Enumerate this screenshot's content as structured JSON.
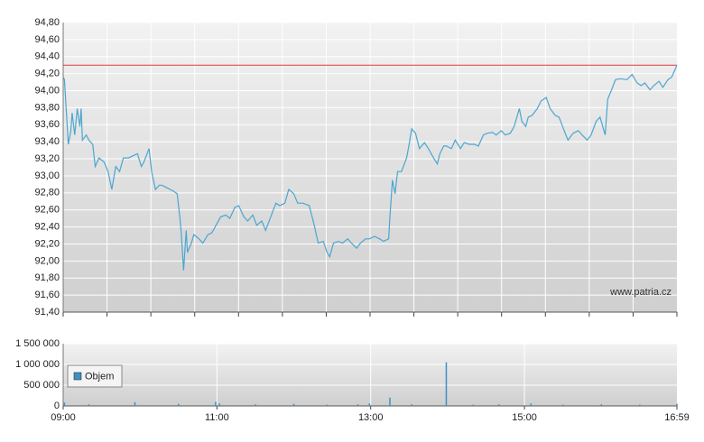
{
  "chart_data": [
    {
      "type": "line",
      "color": "#4ba6d0",
      "reference_line": 94.3,
      "reference_color": "#e03c3c",
      "watermark": "www.patria.cz",
      "grid": true,
      "xlim": [
        540,
        1019
      ],
      "ylim": [
        91.4,
        94.8
      ],
      "yticks": [
        {
          "value": 91.4,
          "label": "91,40"
        },
        {
          "value": 91.6,
          "label": "91,60"
        },
        {
          "value": 91.8,
          "label": "91,80"
        },
        {
          "value": 92.0,
          "label": "92,00"
        },
        {
          "value": 92.2,
          "label": "92,20"
        },
        {
          "value": 92.4,
          "label": "92,40"
        },
        {
          "value": 92.6,
          "label": "92,60"
        },
        {
          "value": 92.8,
          "label": "92,80"
        },
        {
          "value": 93.0,
          "label": "93,00"
        },
        {
          "value": 93.2,
          "label": "93,20"
        },
        {
          "value": 93.4,
          "label": "93,40"
        },
        {
          "value": 93.6,
          "label": "93,60"
        },
        {
          "value": 93.8,
          "label": "93,80"
        },
        {
          "value": 94.0,
          "label": "94,00"
        },
        {
          "value": 94.2,
          "label": "94,20"
        },
        {
          "value": 94.4,
          "label": "94,40"
        },
        {
          "value": 94.6,
          "label": "94,60"
        },
        {
          "value": 94.8,
          "label": "94,80"
        }
      ],
      "x": [
        540,
        541,
        544,
        546,
        547,
        549,
        551,
        553,
        554,
        555,
        558,
        560,
        563,
        565,
        568,
        572,
        575,
        578,
        581,
        584,
        587,
        591,
        595,
        598,
        601,
        603,
        607,
        609,
        612,
        615,
        617,
        621,
        626,
        629,
        631,
        632,
        634,
        636,
        637,
        640,
        642,
        646,
        649,
        653,
        656,
        660,
        663,
        667,
        670,
        674,
        677,
        681,
        684,
        688,
        691,
        695,
        698,
        702,
        706,
        709,
        713,
        716,
        720,
        723,
        727,
        732,
        736,
        739,
        743,
        746,
        748,
        751,
        755,
        758,
        762,
        765,
        769,
        772,
        776,
        779,
        783,
        787,
        790,
        794,
        795,
        797,
        799,
        801,
        804,
        808,
        810,
        812,
        815,
        818,
        822,
        825,
        829,
        832,
        834,
        837,
        839,
        843,
        846,
        850,
        853,
        857,
        861,
        864,
        868,
        871,
        875,
        878,
        882,
        885,
        889,
        892,
        896,
        898,
        901,
        903,
        906,
        910,
        913,
        917,
        920,
        924,
        927,
        931,
        934,
        938,
        942,
        945,
        949,
        952,
        956,
        959,
        963,
        965,
        968,
        971,
        975,
        980,
        984,
        988,
        991,
        994,
        998,
        1001,
        1005,
        1008,
        1012,
        1015,
        1019
      ],
      "values": [
        94.16,
        94.13,
        93.37,
        93.53,
        93.74,
        93.48,
        93.79,
        93.58,
        93.79,
        93.42,
        93.48,
        93.42,
        93.37,
        93.11,
        93.21,
        93.16,
        93.05,
        92.84,
        93.11,
        93.05,
        93.21,
        93.21,
        93.24,
        93.26,
        93.11,
        93.16,
        93.32,
        93.05,
        92.84,
        92.89,
        92.89,
        92.86,
        92.82,
        92.79,
        92.52,
        92.36,
        91.89,
        92.36,
        92.1,
        92.21,
        92.31,
        92.26,
        92.21,
        92.31,
        92.33,
        92.44,
        92.52,
        92.54,
        92.5,
        92.63,
        92.65,
        92.52,
        92.47,
        92.54,
        92.42,
        92.47,
        92.36,
        92.52,
        92.68,
        92.65,
        92.68,
        92.84,
        92.79,
        92.68,
        92.68,
        92.65,
        92.42,
        92.21,
        92.23,
        92.1,
        92.05,
        92.21,
        92.23,
        92.21,
        92.26,
        92.21,
        92.15,
        92.21,
        92.26,
        92.26,
        92.29,
        92.26,
        92.23,
        92.26,
        92.52,
        92.95,
        92.79,
        93.05,
        93.05,
        93.21,
        93.37,
        93.55,
        93.5,
        93.32,
        93.39,
        93.32,
        93.21,
        93.14,
        93.26,
        93.35,
        93.35,
        93.32,
        93.42,
        93.32,
        93.39,
        93.37,
        93.37,
        93.35,
        93.48,
        93.5,
        93.51,
        93.48,
        93.53,
        93.48,
        93.5,
        93.58,
        93.79,
        93.64,
        93.58,
        93.69,
        93.71,
        93.79,
        93.88,
        93.92,
        93.79,
        93.71,
        93.69,
        93.53,
        93.42,
        93.5,
        93.53,
        93.48,
        93.42,
        93.48,
        93.64,
        93.69,
        93.48,
        93.9,
        94.01,
        94.13,
        94.14,
        94.13,
        94.19,
        94.09,
        94.06,
        94.09,
        94.01,
        94.06,
        94.11,
        94.04,
        94.13,
        94.16,
        94.3
      ]
    },
    {
      "type": "bar",
      "grid": true,
      "legend": "left",
      "xlim": [
        540,
        1019
      ],
      "xticks": [
        {
          "value": 540,
          "label": "09:00"
        },
        {
          "value": 660,
          "label": "11:00"
        },
        {
          "value": 780,
          "label": "13:00"
        },
        {
          "value": 900,
          "label": "15:00"
        },
        {
          "value": 1019,
          "label": "16:59"
        }
      ],
      "ylim": [
        0,
        1500000
      ],
      "yticks": [
        0,
        {
          "value": 500000,
          "label": "500 000"
        },
        {
          "value": 1000000,
          "label": "1 000 000"
        },
        {
          "value": 1500000,
          "label": "1 500 000"
        }
      ],
      "x": [
        541,
        560,
        596,
        630,
        659,
        662,
        690,
        720,
        746,
        770,
        779,
        795,
        812,
        839,
        860,
        880,
        905,
        930,
        960,
        990,
        1019
      ],
      "series": [
        {
          "name": "Objem",
          "color": "#3d8fc4",
          "values": [
            80000,
            40000,
            90000,
            50000,
            100000,
            60000,
            40000,
            50000,
            30000,
            40000,
            60000,
            200000,
            40000,
            1050000,
            30000,
            40000,
            60000,
            30000,
            40000,
            30000,
            50000
          ]
        }
      ]
    }
  ]
}
